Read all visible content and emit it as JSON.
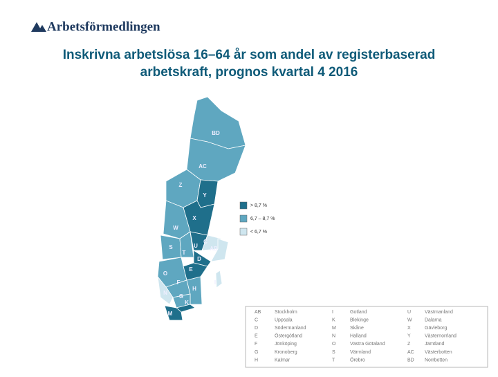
{
  "logo": "Arbetsförmedlingen",
  "title": [
    "Inskrivna arbetslösa 16–64 år som andel av registerbaserad",
    "arbetskraft, prognos kvartal 4 2016"
  ],
  "legend": [
    {
      "label": "> 8,7 %",
      "color": "#1f6f8b"
    },
    {
      "label": "6,7 – 8,7 %",
      "color": "#5fa7c0"
    },
    {
      "label": "< 6,7 %",
      "color": "#cfe6ef"
    }
  ],
  "regions": [
    {
      "code": "BD",
      "class": 1
    },
    {
      "code": "AC",
      "class": 1
    },
    {
      "code": "Z",
      "class": 1
    },
    {
      "code": "Y",
      "class": 0
    },
    {
      "code": "X",
      "class": 0
    },
    {
      "code": "W",
      "class": 1
    },
    {
      "code": "S",
      "class": 1
    },
    {
      "code": "T",
      "class": 1
    },
    {
      "code": "U",
      "class": 0
    },
    {
      "code": "C",
      "class": 2
    },
    {
      "code": "AB",
      "class": 2
    },
    {
      "code": "D",
      "class": 0
    },
    {
      "code": "E",
      "class": 0
    },
    {
      "code": "O",
      "class": 1
    },
    {
      "code": "F",
      "class": 1
    },
    {
      "code": "H",
      "class": 1
    },
    {
      "code": "N",
      "class": 2
    },
    {
      "code": "G",
      "class": 1
    },
    {
      "code": "K",
      "class": 0
    },
    {
      "code": "M",
      "class": 0
    },
    {
      "code": "I",
      "class": 2
    }
  ],
  "table": {
    "rows": [
      [
        "AB",
        "Stockholm",
        "I",
        "Gotland",
        "U",
        "Västmanland"
      ],
      [
        "C",
        "Uppsala",
        "K",
        "Blekinge",
        "W",
        "Dalarna"
      ],
      [
        "D",
        "Södermanland",
        "M",
        "Skåne",
        "X",
        "Gävleborg"
      ],
      [
        "E",
        "Östergötland",
        "N",
        "Halland",
        "Y",
        "Västernorrland"
      ],
      [
        "F",
        "Jönköping",
        "O",
        "Västra Götaland",
        "Z",
        "Jämtland"
      ],
      [
        "G",
        "Kronoberg",
        "S",
        "Värmland",
        "AC",
        "Västerbotten"
      ],
      [
        "H",
        "Kalmar",
        "T",
        "Örebro",
        "BD",
        "Norrbotten"
      ]
    ]
  }
}
